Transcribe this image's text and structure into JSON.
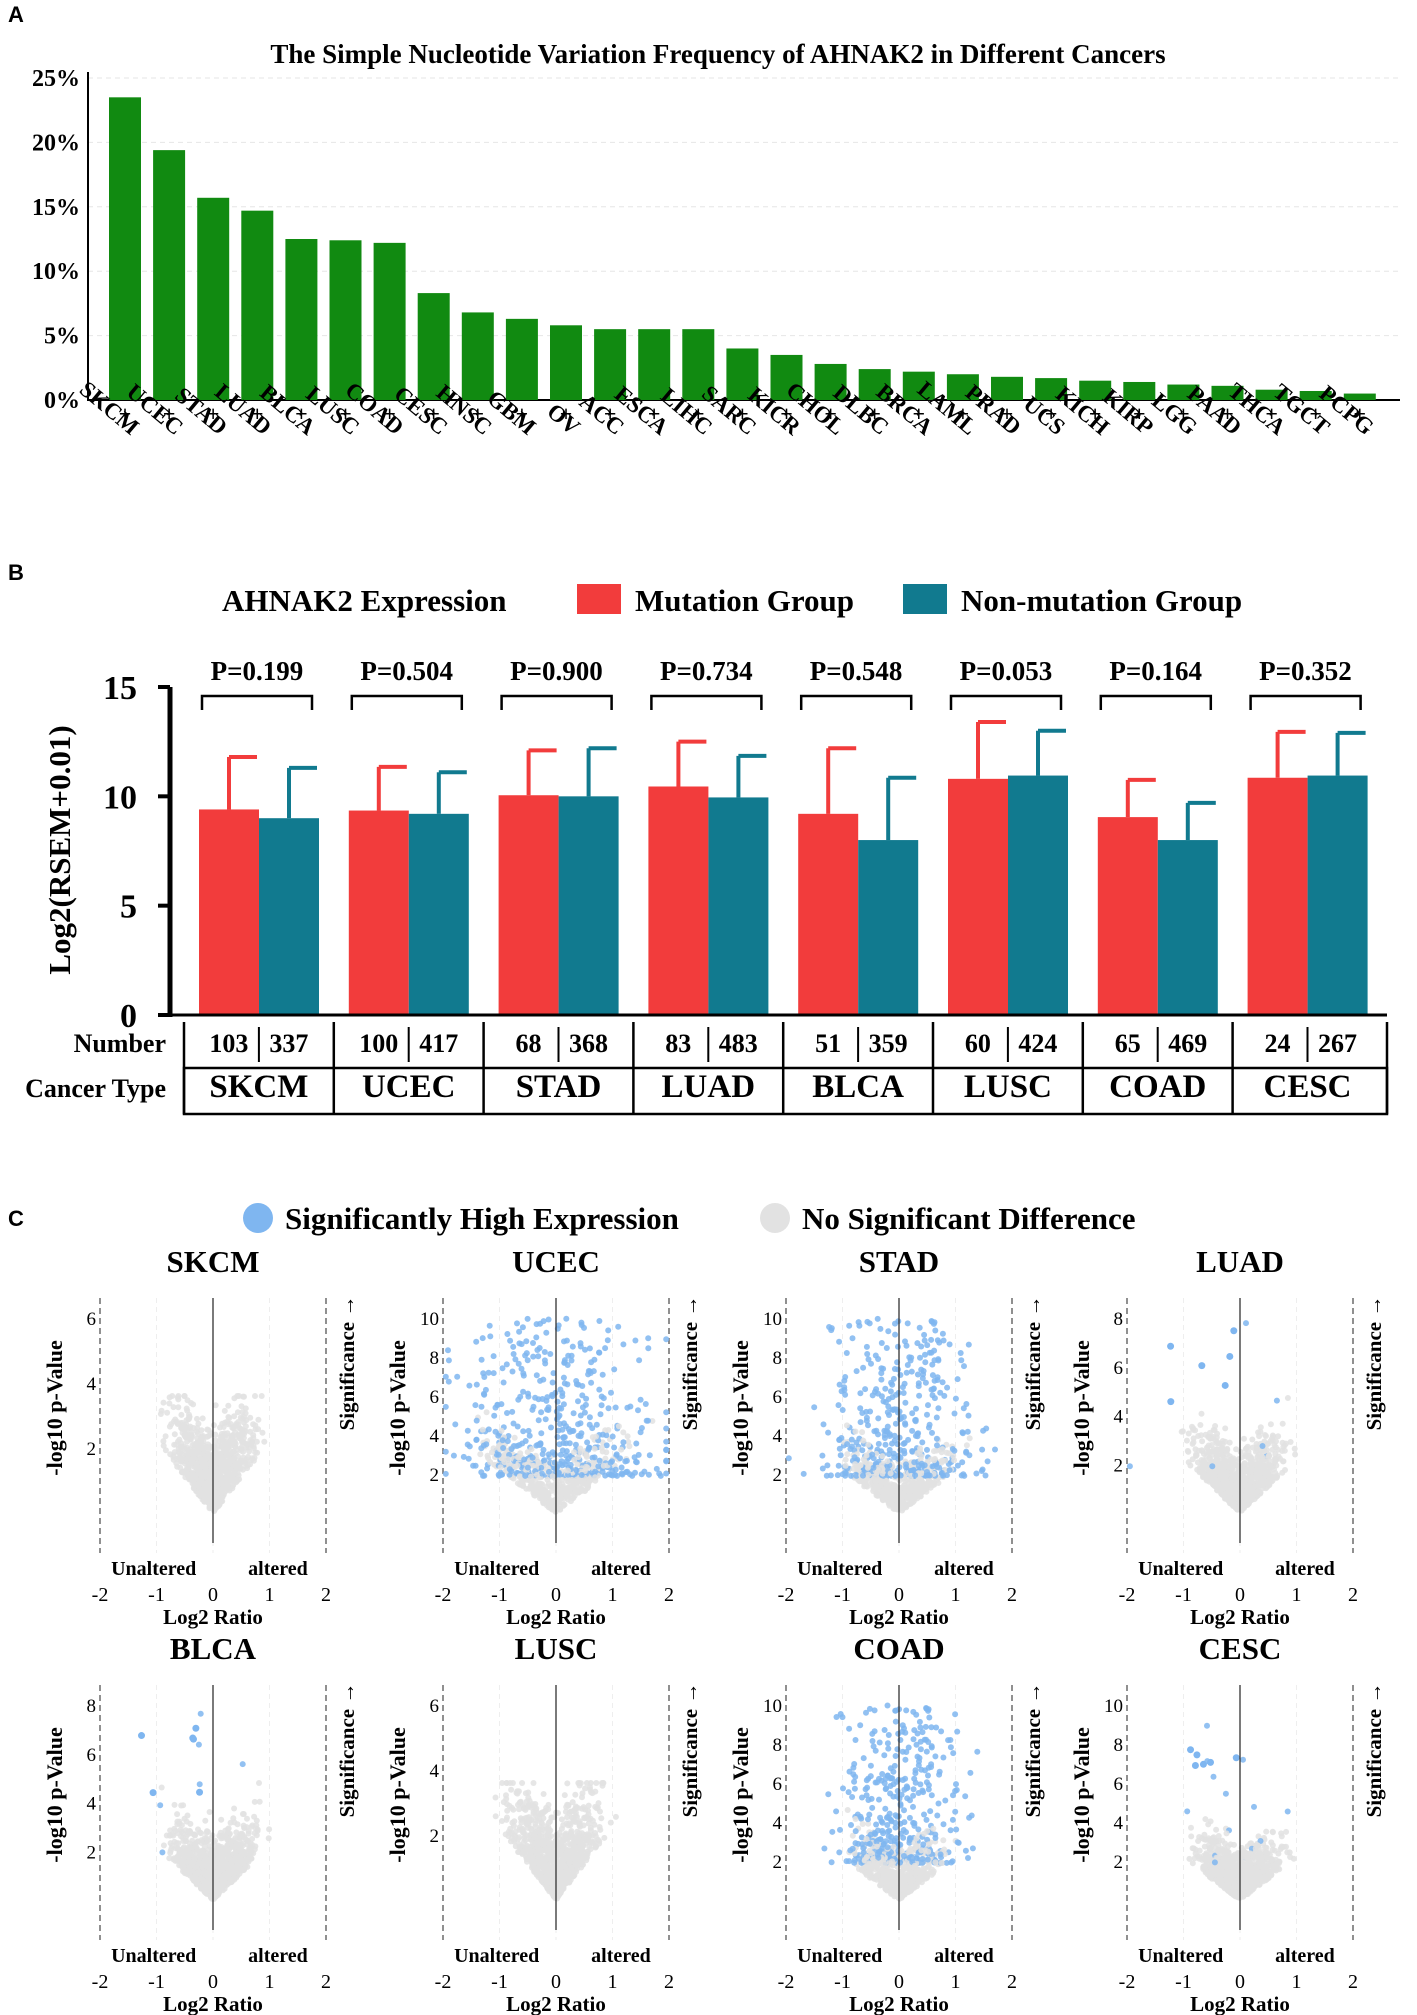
{
  "panels": [
    {
      "label": "A"
    },
    {
      "label": "B"
    },
    {
      "label": "C"
    }
  ],
  "chart_data": [
    {
      "panel": "A",
      "type": "bar",
      "title": "The Simple Nucleotide Variation Frequency of AHNAK2 in Different Cancers",
      "ylabel": "",
      "ylim": [
        0,
        25
      ],
      "yticks": [
        "0%",
        "5%",
        "10%",
        "15%",
        "20%",
        "25%"
      ],
      "color": "#118a11",
      "marker": "+",
      "categories": [
        "SKCM",
        "UCEC",
        "STAD",
        "LUAD",
        "BLCA",
        "LUSC",
        "COAD",
        "CESC",
        "HNSC",
        "GBM",
        "OV",
        "ACC",
        "ESCA",
        "LIHC",
        "SARC",
        "KICR",
        "CHOL",
        "DLBC",
        "BRCA",
        "LAML",
        "PRAD",
        "UCS",
        "KICH",
        "KIRP",
        "LGG",
        "PAAD",
        "THCA",
        "TGCT",
        "PCPG"
      ],
      "values": [
        23.5,
        19.4,
        15.7,
        14.7,
        12.5,
        12.4,
        12.2,
        8.3,
        6.8,
        6.3,
        5.8,
        5.5,
        5.5,
        5.5,
        4.0,
        3.5,
        2.8,
        2.4,
        2.2,
        2.0,
        1.8,
        1.7,
        1.5,
        1.4,
        1.2,
        1.1,
        0.8,
        0.7,
        0.5
      ]
    },
    {
      "panel": "B",
      "type": "bar",
      "title": "AHNAK2 Expression",
      "ylabel": "Log2(RSEM+0.01)",
      "ylim": [
        0,
        15
      ],
      "yticks": [
        "0",
        "5",
        "10",
        "15"
      ],
      "categories": [
        "SKCM",
        "UCEC",
        "STAD",
        "LUAD",
        "BLCA",
        "LUSC",
        "COAD",
        "CESC"
      ],
      "series": [
        {
          "name": "Mutation Group",
          "color": "#f23c3c",
          "values": [
            9.4,
            9.35,
            10.05,
            10.45,
            9.2,
            10.8,
            9.05,
            10.85
          ],
          "errors": [
            2.4,
            2.0,
            2.05,
            2.05,
            3.0,
            2.6,
            1.7,
            2.1
          ]
        },
        {
          "name": "Non-mutation Group",
          "color": "#117a8f",
          "values": [
            9.0,
            9.2,
            10.0,
            9.95,
            8.0,
            10.95,
            8.0,
            10.95
          ],
          "errors": [
            2.3,
            1.9,
            2.2,
            1.9,
            2.85,
            2.05,
            1.7,
            1.95
          ]
        }
      ],
      "pvalues": [
        "P=0.199",
        "P=0.504",
        "P=0.900",
        "P=0.734",
        "P=0.548",
        "P=0.053",
        "P=0.164",
        "P=0.352"
      ],
      "numbers": [
        [
          "103",
          "337"
        ],
        [
          "100",
          "417"
        ],
        [
          "68",
          "368"
        ],
        [
          "83",
          "483"
        ],
        [
          "51",
          "359"
        ],
        [
          "60",
          "424"
        ],
        [
          "65",
          "469"
        ],
        [
          "24",
          "267"
        ]
      ],
      "number_row_label": "Number",
      "cancer_row_label": "Cancer Type"
    },
    {
      "panel": "C",
      "type": "scatter",
      "legend": [
        {
          "label": "Significantly High Expression",
          "color": "#7fb6f0"
        },
        {
          "label": "No Significant Difference",
          "color": "#e2e2e2"
        }
      ],
      "xlabel": "Log2 Ratio",
      "ylabel": "-log10 p-Value",
      "right_label": "Significance →",
      "left_note": "Unaltered",
      "right_note": "altered",
      "xticks": [
        "-2",
        "-1",
        "0",
        "1",
        "2"
      ],
      "plots": [
        {
          "name": "SKCM",
          "ymax": 6,
          "yticks": [
            "2",
            "4",
            "6"
          ],
          "density": 0.0,
          "spread": 1.0
        },
        {
          "name": "UCEC",
          "ymax": 10,
          "yticks": [
            "2",
            "4",
            "6",
            "8",
            "10"
          ],
          "density": 1.0,
          "spread": 1.6
        },
        {
          "name": "STAD",
          "ymax": 10,
          "yticks": [
            "2",
            "4",
            "6",
            "8",
            "10"
          ],
          "density": 0.9,
          "spread": 1.2
        },
        {
          "name": "LUAD",
          "ymax": 8,
          "yticks": [
            "2",
            "4",
            "6",
            "8"
          ],
          "density": 0.02,
          "spread": 1.1
        },
        {
          "name": "BLCA",
          "ymax": 8,
          "yticks": [
            "2",
            "4",
            "6",
            "8"
          ],
          "density": 0.01,
          "spread": 1.0
        },
        {
          "name": "LUSC",
          "ymax": 6,
          "yticks": [
            "2",
            "4",
            "6"
          ],
          "density": 0.0,
          "spread": 1.1
        },
        {
          "name": "COAD",
          "ymax": 10,
          "yticks": [
            "2",
            "4",
            "6",
            "8",
            "10"
          ],
          "density": 0.85,
          "spread": 1.0
        },
        {
          "name": "CESC",
          "ymax": 10,
          "yticks": [
            "2",
            "4",
            "6",
            "8",
            "10"
          ],
          "density": 0.03,
          "spread": 1.0
        }
      ]
    }
  ]
}
